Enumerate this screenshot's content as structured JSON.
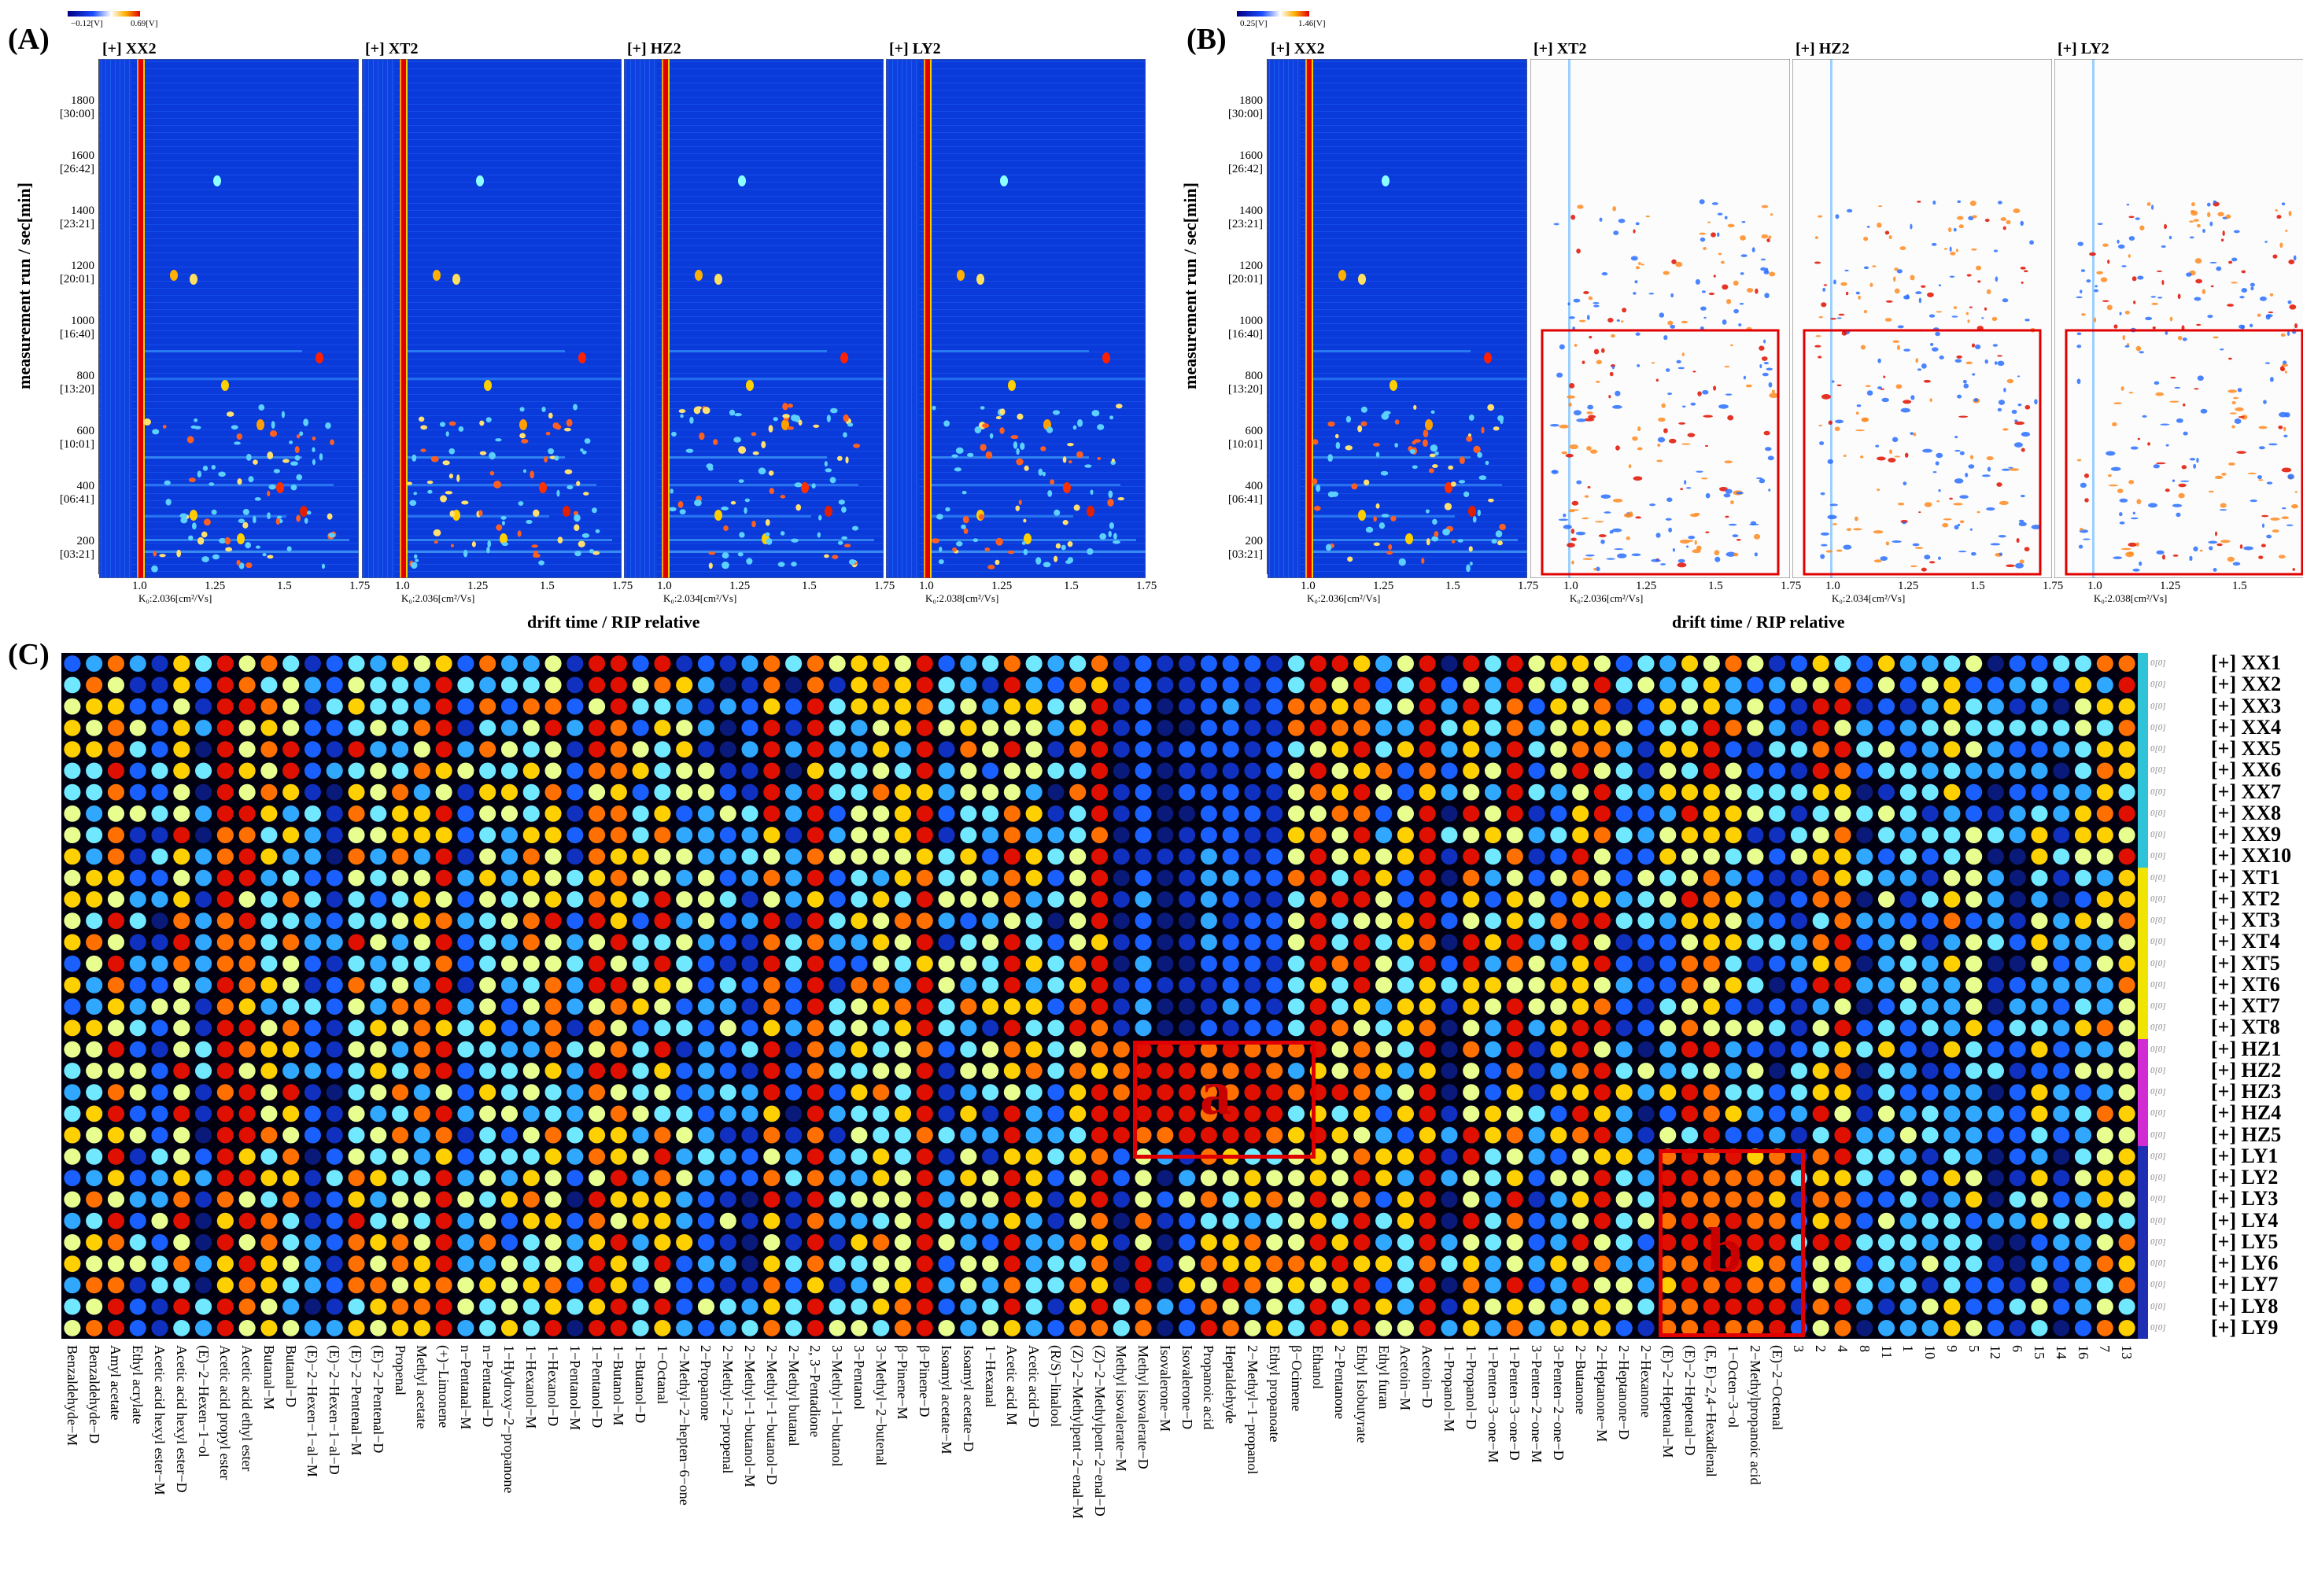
{
  "panel_labels": {
    "a": "(A)",
    "b": "(B)",
    "c": "(C)"
  },
  "panel_a": {
    "colorbar_min": "−0.12[V]",
    "colorbar_max": "0.69[V]",
    "samples": [
      "[+] XX2",
      "[+] XT2",
      "[+] HZ2",
      "[+] LY2"
    ],
    "k0_labels": [
      "K₀:2.036[cm²/Vs]",
      "K₀:2.036[cm²/Vs]",
      "K₀:2.034[cm²/Vs]",
      "K₀:2.038[cm²/Vs]"
    ]
  },
  "panel_b": {
    "colorbar_min": "0.25[V]",
    "colorbar_max": "1.46[V]",
    "samples": [
      "[+] XX2",
      "[+] XT2",
      "[+] HZ2",
      "[+] LY2"
    ],
    "k0_labels": [
      "K₀:2.036[cm²/Vs]",
      "K₀:2.036[cm²/Vs]",
      "K₀:2.034[cm²/Vs]",
      "K₀:2.038[cm²/Vs]"
    ]
  },
  "y_axis_title": "measurement run / sec[min]",
  "y_ticks": [
    {
      "sec": "1800",
      "min": "[30:00]"
    },
    {
      "sec": "1600",
      "min": "[26:42]"
    },
    {
      "sec": "1400",
      "min": "[23:21]"
    },
    {
      "sec": "1200",
      "min": "[20:01]"
    },
    {
      "sec": "1000",
      "min": "[16:40]"
    },
    {
      "sec": "800",
      "min": "[13:20]"
    },
    {
      "sec": "600",
      "min": "[10:01]"
    },
    {
      "sec": "400",
      "min": "[06:41]"
    },
    {
      "sec": "200",
      "min": "[03:21]"
    }
  ],
  "x_ticks": [
    "1.0",
    "1.25",
    "1.5",
    "1.75"
  ],
  "x_axis_title": "drift time / RIP relative",
  "panel_c": {
    "row_labels": [
      "[+] XX1",
      "[+] XX2",
      "[+] XX3",
      "[+] XX4",
      "[+] XX5",
      "[+] XX6",
      "[+] XX7",
      "[+] XX8",
      "[+] XX9",
      "[+] XX10",
      "[+] XT1",
      "[+] XT2",
      "[+] XT3",
      "[+] XT4",
      "[+] XT5",
      "[+] XT6",
      "[+] XT7",
      "[+] XT8",
      "[+] HZ1",
      "[+] HZ2",
      "[+] HZ3",
      "[+] HZ4",
      "[+] HZ5",
      "[+] LY1",
      "[+] LY2",
      "[+] LY3",
      "[+] LY4",
      "[+] LY5",
      "[+] LY6",
      "[+] LY7",
      "[+] LY8",
      "[+] LY9"
    ],
    "group_colors": {
      "XX": "#2fc3d8",
      "XT": "#f0e400",
      "HZ": "#d12bd4",
      "LY": "#1e2fb4"
    },
    "row_value_label": "0[0]",
    "region_markers": [
      "a",
      "b"
    ],
    "compounds": [
      "Benzaldehyde−M",
      "Benzaldehyde−D",
      "Amyl acetate",
      "Ethyl acrylate",
      "Acetic acid hexyl ester−M",
      "Acetic acid hexyl ester−D",
      "(E)−2−Hexen−1−ol",
      "Acetic acid propyl ester",
      "Acetic acid ethyl ester",
      "Butanal−M",
      "Butanal−D",
      "(E)−2−Hexen−1−al−M",
      "(E)−2−Hexen−1−al−D",
      "(E)−2−Pentenal−M",
      "(E)−2−Pentenal−D",
      "Propenal",
      "Methyl acetate",
      "(+)−Limonene",
      "n−Pentanal−M",
      "n−Pentanal−D",
      "1−Hydroxy−2−propanone",
      "1−Hexanol−M",
      "1−Hexanol−D",
      "1−Pentanol−M",
      "1−Pentanol−D",
      "1−Butanol−M",
      "1−Butanol−D",
      "1−Octanal",
      "2−Methyl−2−hepten−6−one",
      "2−Propanone",
      "2−Methyl−2−propenal",
      "2−Methyl−1−butanol−M",
      "2−Methyl−1−butanol−D",
      "2−Methyl butanal",
      "2, 3−Pentadione",
      "3−Methyl−1−butanol",
      "3−Pentanol",
      "3−Methyl−2−butenal",
      "β−Pinene−M",
      "β−Pinene−D",
      "Isoamyl acetate−M",
      "Isoamyl acetate−D",
      "1−Hexanal",
      "Acetic acid M",
      "Acetic acid−D",
      "(R/S)−linalool",
      "(Z)−2−Methylpent−2−enal−M",
      "(Z)−2−Methylpent−2−enal−D",
      "Methyl isovalerate−M",
      "Methyl isovalerate−D",
      "Isovalerone−M",
      "Isovalerone−D",
      "Propanoic acid",
      "Heptaldehyde",
      "2−Methyl−1−propanol",
      "Ethyl propanoate",
      "β−Ocimene",
      "Ethanol",
      "2−Pentanone",
      "Ethyl Isobutyrate",
      "Ethyl furan",
      "Acetoin−M",
      "Acetoin−D",
      "1−Propanol−M",
      "1−Propanol−D",
      "1−Penten−3−one−M",
      "1−Penten−3−one−D",
      "3−Penten−2−one−M",
      "3−Penten−2−one−D",
      "2−Butanone",
      "2−Heptanone−M",
      "2−Heptanone−D",
      "2−Hexanone",
      "(E)−2−Heptenal−M",
      "(E)−2−Heptenal−D",
      "(E, E)−2,4−Hexadienal",
      "1−Octen−3−ol",
      "2−Methylpropanoic acid",
      "(E)−2−Octenal",
      "3",
      "2",
      "4",
      "8",
      "11",
      "1",
      "10",
      "9",
      "5",
      "12",
      "6",
      "15",
      "14",
      "16",
      "7",
      "13"
    ]
  }
}
